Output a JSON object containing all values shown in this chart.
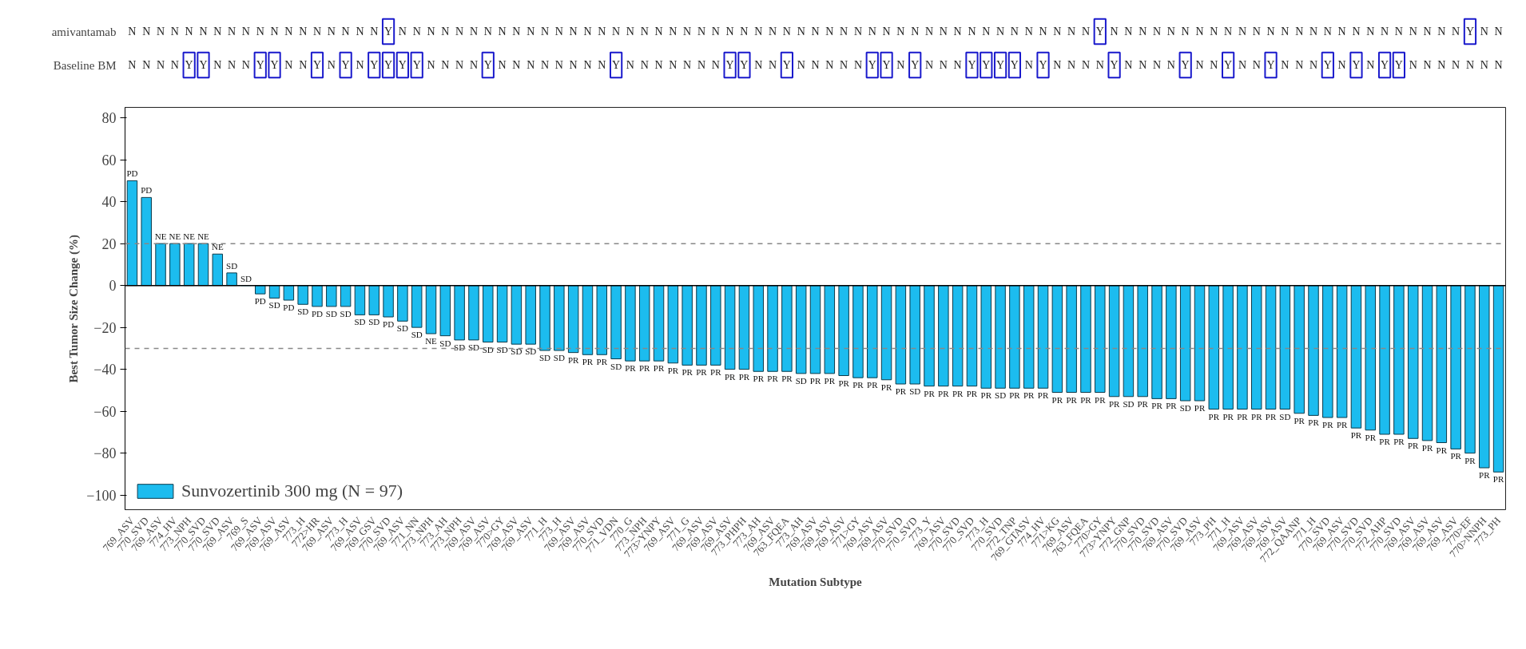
{
  "chart_data": [
    {
      "type": "heatmap",
      "categories": [
        null,
        null,
        null,
        null,
        null,
        null,
        null,
        null,
        null,
        null,
        null,
        null,
        null,
        null,
        null,
        null,
        null,
        null,
        null,
        null,
        null,
        null,
        null,
        null,
        null,
        null,
        null,
        null,
        null,
        null,
        null,
        null,
        null,
        null,
        null,
        null,
        null,
        null,
        null,
        null,
        null,
        null,
        null,
        null,
        null,
        null,
        null,
        null,
        null,
        null,
        null,
        null,
        null,
        null,
        null,
        null,
        null,
        null,
        null,
        null,
        null,
        null,
        null,
        null,
        null,
        null,
        null,
        null,
        null,
        null,
        null,
        null,
        null,
        null,
        null,
        null,
        null,
        null,
        null,
        null,
        null,
        null,
        null,
        null,
        null,
        null,
        null,
        null,
        null,
        null,
        null,
        null,
        null,
        null,
        null,
        null,
        null
      ],
      "y_categories": [
        "amivantamab",
        "Baseline BM"
      ],
      "color": "#1a1acc",
      "cells": [
        [
          "N",
          "N",
          "N",
          "N",
          "N",
          "N",
          "N",
          "N",
          "N",
          "N",
          "N",
          "N",
          "N",
          "N",
          "N",
          "N",
          "N",
          "N",
          "Y",
          "N",
          "N",
          "N",
          "N",
          "N",
          "N",
          "N",
          "N",
          "N",
          "N",
          "N",
          "N",
          "N",
          "N",
          "N",
          "N",
          "N",
          "N",
          "N",
          "N",
          "N",
          "N",
          "N",
          "N",
          "N",
          "N",
          "N",
          "N",
          "N",
          "N",
          "N",
          "N",
          "N",
          "N",
          "N",
          "N",
          "N",
          "N",
          "N",
          "N",
          "N",
          "N",
          "N",
          "N",
          "N",
          "N",
          "N",
          "N",
          "N",
          "Y",
          "N",
          "N",
          "N",
          "N",
          "N",
          "N",
          "N",
          "N",
          "N",
          "N",
          "N",
          "N",
          "N",
          "N",
          "N",
          "N",
          "N",
          "N",
          "N",
          "N",
          "N",
          "N",
          "N",
          "N",
          "N",
          "Y",
          "N",
          "N"
        ],
        [
          "N",
          "N",
          "N",
          "N",
          "Y",
          "Y",
          "N",
          "N",
          "N",
          "Y",
          "Y",
          "N",
          "N",
          "Y",
          "N",
          "Y",
          "N",
          "Y",
          "Y",
          "Y",
          "Y",
          "N",
          "N",
          "N",
          "N",
          "Y",
          "N",
          "N",
          "N",
          "N",
          "N",
          "N",
          "N",
          "N",
          "Y",
          "N",
          "N",
          "N",
          "N",
          "N",
          "N",
          "N",
          "Y",
          "Y",
          "N",
          "N",
          "Y",
          "N",
          "N",
          "N",
          "N",
          "N",
          "Y",
          "Y",
          "N",
          "Y",
          "N",
          "N",
          "N",
          "Y",
          "Y",
          "Y",
          "Y",
          "N",
          "Y",
          "N",
          "N",
          "N",
          "N",
          "Y",
          "N",
          "N",
          "N",
          "N",
          "Y",
          "N",
          "N",
          "Y",
          "N",
          "N",
          "Y",
          "N",
          "N",
          "N",
          "Y",
          "N",
          "Y",
          "N",
          "Y",
          "Y",
          "N",
          "N",
          "N",
          "N",
          "N",
          "N",
          "N"
        ]
      ]
    },
    {
      "type": "bar",
      "xlabel": "Mutation Subtype",
      "ylabel": "Best Tumor Size Change (%)",
      "ylim": [
        -107,
        85
      ],
      "yticks": [
        -100,
        -80,
        -60,
        -40,
        -20,
        0,
        20,
        40,
        60,
        80
      ],
      "legend": "bottom left",
      "ref_lines": [
        {
          "axis": "y",
          "value": 20,
          "color": "#888888",
          "line_style": "dashed"
        },
        {
          "axis": "y",
          "value": -30,
          "color": "#888888",
          "line_style": "dashed"
        }
      ],
      "categories": [
        "769_ASV",
        "770_SVD",
        "769_ASV",
        "774_HV",
        "773_NPH",
        "770_SVD",
        "770_SVD",
        "769_ASV",
        "769_S",
        "769_ASV",
        "769_ASV",
        "769_ASV",
        "773_H",
        "772>HR",
        "769_ASV",
        "773_H",
        "769_ASV",
        "769_GSV",
        "770_SVD",
        "769_ASV",
        "771_NN",
        "773_NPH",
        "773_AH",
        "773_NPH",
        "769_ASV",
        "769_ASV",
        "770>GY",
        "769_ASV",
        "769_ASV",
        "771_H",
        "773_H",
        "769_ASV",
        "769_ASV",
        "770_SVD",
        "771_VDN",
        "770_G",
        "773_NPH",
        "773>YNPY",
        "769_ASV",
        "771_G",
        "769_ASV",
        "769_ASV",
        "769_ASV",
        "773_PHPH",
        "773_AH",
        "769_ASV",
        "763_FQEA",
        "773_AH",
        "769_ASV",
        "769_ASV",
        "769_ASV",
        "771>GY",
        "769_ASV",
        "769_ASV",
        "770_SVD",
        "770_SVD",
        "773_Y",
        "769_ASV",
        "770_SVD",
        "770_SVD",
        "773_H",
        "770_SVD",
        "772_TNP",
        "769_GTASV",
        "774_HV",
        "771>KG",
        "769_ASV",
        "763_FQEA",
        "770>GY",
        "773>YNPY",
        "772_GNP",
        "770_SVD",
        "770_SVD",
        "769_ASV",
        "770_SVD",
        "769_ASV",
        "773_PH",
        "771_H",
        "769_ASV",
        "769_ASV",
        "769_ASV",
        "769_ASV",
        "772_QAANP",
        "771_H",
        "770_SVD",
        "769_ASV",
        "770_SVD",
        "770_SVD",
        "772_AHP",
        "770_SVD",
        "769_ASV",
        "769_ASV",
        "769_ASV",
        "769_ASV",
        "770>EF",
        "770>NNPH",
        "773_PH"
      ],
      "series": [
        {
          "name": "Sunvozertinib 300 mg (N = 97)",
          "color": "#1cbcef",
          "values": [
            50,
            42,
            20,
            20,
            20,
            20,
            15,
            6,
            0,
            -4,
            -6,
            -7,
            -9,
            -10,
            -10,
            -10,
            -14,
            -14,
            -15,
            -17,
            -20,
            -23,
            -24,
            -26,
            -26,
            -27,
            -27,
            -28,
            -28,
            -31,
            -31,
            -32,
            -33,
            -33,
            -35,
            -36,
            -36,
            -36,
            -37,
            -38,
            -38,
            -38,
            -40,
            -40,
            -41,
            -41,
            -41,
            -42,
            -42,
            -42,
            -43,
            -44,
            -44,
            -45,
            -47,
            -47,
            -48,
            -48,
            -48,
            -48,
            -49,
            -49,
            -49,
            -49,
            -49,
            -51,
            -51,
            -51,
            -51,
            -53,
            -53,
            -53,
            -54,
            -54,
            -55,
            -55,
            -59,
            -59,
            -59,
            -59,
            -59,
            -59,
            -61,
            -62,
            -63,
            -63,
            -68,
            -69,
            -71,
            -71,
            -73,
            -74,
            -75,
            -78,
            -80,
            -87,
            -89
          ],
          "value_labels": [
            "PD",
            "PD",
            "NE",
            "NE",
            "NE",
            "NE",
            "NE",
            "SD",
            "SD",
            "PD",
            "SD",
            "PD",
            "SD",
            "PD",
            "SD",
            "SD",
            "SD",
            "SD",
            "PD",
            "SD",
            "SD",
            "NE",
            "SD",
            "SD",
            "SD",
            "SD",
            "SD",
            "SD",
            "SD",
            "SD",
            "SD",
            "PR",
            "PR",
            "PR",
            "SD",
            "PR",
            "PR",
            "PR",
            "PR",
            "PR",
            "PR",
            "PR",
            "PR",
            "PR",
            "PR",
            "PR",
            "PR",
            "SD",
            "PR",
            "PR",
            "PR",
            "PR",
            "PR",
            "PR",
            "PR",
            "SD",
            "PR",
            "PR",
            "PR",
            "PR",
            "PR",
            "SD",
            "PR",
            "PR",
            "PR",
            "PR",
            "PR",
            "PR",
            "PR",
            "PR",
            "SD",
            "PR",
            "PR",
            "PR",
            "SD",
            "PR",
            "PR",
            "PR",
            "PR",
            "PR",
            "PR",
            "SD",
            "PR",
            "PR",
            "PR",
            "PR",
            "PR",
            "PR",
            "PR",
            "PR",
            "PR",
            "PR",
            "PR",
            "PR",
            "PR",
            "PR",
            "PR"
          ]
        }
      ]
    }
  ]
}
